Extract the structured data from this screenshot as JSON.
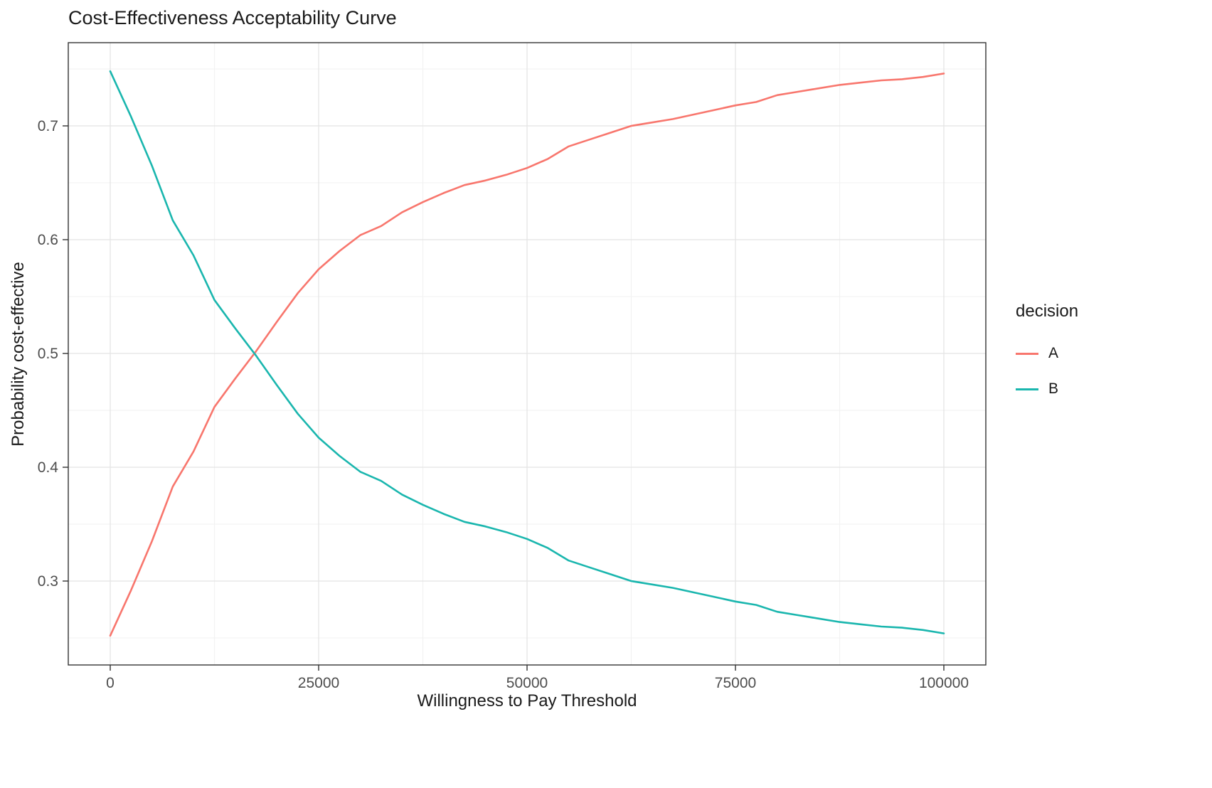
{
  "chart_data": {
    "type": "line",
    "title": "Cost-Effectiveness Acceptability Curve",
    "xlabel": "Willingness to Pay Threshold",
    "ylabel": "Probability cost-effective",
    "xlim": [
      0,
      100000
    ],
    "ylim": [
      0.25,
      0.75
    ],
    "grid": "major+minor",
    "legend": {
      "title": "decision",
      "position": "right"
    },
    "x_ticks": [
      {
        "value": 0,
        "label": "0"
      },
      {
        "value": 25000,
        "label": "25000"
      },
      {
        "value": 50000,
        "label": "50000"
      },
      {
        "value": 75000,
        "label": "75000"
      },
      {
        "value": 100000,
        "label": "100000"
      }
    ],
    "y_ticks": [
      {
        "value": 0.3,
        "label": "0.3"
      },
      {
        "value": 0.4,
        "label": "0.4"
      },
      {
        "value": 0.5,
        "label": "0.5"
      },
      {
        "value": 0.6,
        "label": "0.6"
      },
      {
        "value": 0.7,
        "label": "0.7"
      }
    ],
    "x_minor": [
      12500,
      37500,
      62500,
      87500
    ],
    "y_minor": [
      0.25,
      0.35,
      0.45,
      0.55,
      0.65,
      0.75
    ],
    "x": [
      0,
      2500,
      5000,
      7500,
      10000,
      12500,
      15000,
      17500,
      20000,
      22500,
      25000,
      27500,
      30000,
      32500,
      35000,
      37500,
      40000,
      42500,
      45000,
      47500,
      50000,
      52500,
      55000,
      57500,
      60000,
      62500,
      65000,
      67500,
      70000,
      72500,
      75000,
      77500,
      80000,
      82500,
      85000,
      87500,
      90000,
      92500,
      95000,
      97500,
      100000
    ],
    "series": [
      {
        "name": "A",
        "color": "#F8766D",
        "values": [
          0.252,
          0.292,
          0.335,
          0.383,
          0.414,
          0.453,
          0.478,
          0.502,
          0.528,
          0.553,
          0.574,
          0.59,
          0.604,
          0.612,
          0.624,
          0.633,
          0.641,
          0.648,
          0.652,
          0.657,
          0.663,
          0.671,
          0.682,
          0.688,
          0.694,
          0.7,
          0.703,
          0.706,
          0.71,
          0.714,
          0.718,
          0.721,
          0.727,
          0.73,
          0.733,
          0.736,
          0.738,
          0.74,
          0.741,
          0.743,
          0.746
        ]
      },
      {
        "name": "B",
        "color": "#1AB6AE",
        "values": [
          0.748,
          0.708,
          0.665,
          0.617,
          0.586,
          0.547,
          0.522,
          0.498,
          0.472,
          0.447,
          0.426,
          0.41,
          0.396,
          0.388,
          0.376,
          0.367,
          0.359,
          0.352,
          0.348,
          0.343,
          0.337,
          0.329,
          0.318,
          0.312,
          0.306,
          0.3,
          0.297,
          0.294,
          0.29,
          0.286,
          0.282,
          0.279,
          0.273,
          0.27,
          0.267,
          0.264,
          0.262,
          0.26,
          0.259,
          0.257,
          0.254
        ]
      }
    ]
  }
}
